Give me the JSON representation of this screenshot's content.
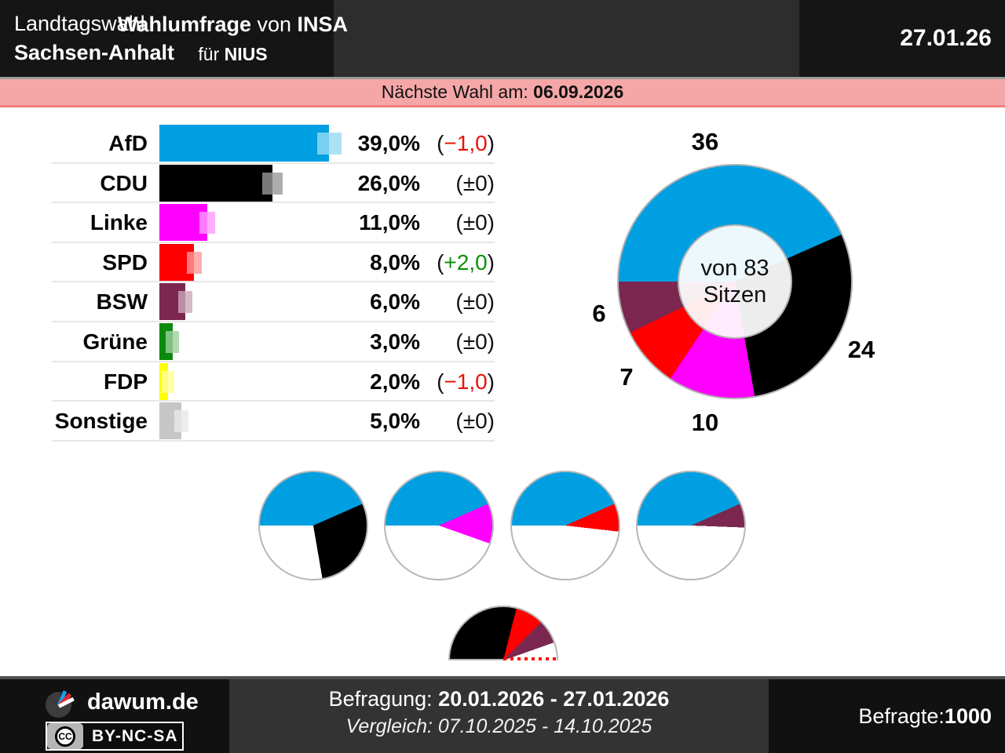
{
  "header": {
    "title_line1": "Landtagswahl",
    "title_line2": "Sachsen-Anhalt",
    "center_bold1": "Wahlumfrage",
    "center_sep": " von ",
    "center_bold2": "INSA",
    "center2_pre": "für ",
    "center2_bold": "NIUS",
    "date": "27.01.26"
  },
  "banner": {
    "prefix": "Nächste Wahl am: ",
    "date": "06.09.2026",
    "bg_color": "#f5a7a7"
  },
  "chart_data": [
    {
      "id": "poll-bars",
      "type": "bar",
      "unit": "%",
      "categories": [
        "AfD",
        "CDU",
        "Linke",
        "SPD",
        "BSW",
        "Grüne",
        "FDP",
        "Sonstige"
      ],
      "values": [
        39.0,
        26.0,
        11.0,
        8.0,
        6.0,
        3.0,
        2.0,
        5.0
      ],
      "value_labels": [
        "39,0%",
        "26,0%",
        "11,0%",
        "8,0%",
        "6,0%",
        "3,0%",
        "2,0%",
        "5,0%"
      ],
      "changes": [
        "−1,0",
        "±0",
        "±0",
        "+2,0",
        "±0",
        "±0",
        "−1,0",
        "±0"
      ],
      "change_trends": [
        "neg",
        "zero",
        "zero",
        "pos",
        "zero",
        "zero",
        "neg",
        "zero"
      ],
      "colors": [
        "#009fe1",
        "#000000",
        "#fe00fe",
        "#ff0000",
        "#7b2750",
        "#0b8a0e",
        "#ffff00",
        "#c6c6c6"
      ],
      "trend_colors": {
        "neg": "#e81309",
        "pos": "#0a9106",
        "zero": "#111111"
      },
      "xlim": [
        0,
        40.5
      ],
      "grid": false
    },
    {
      "id": "seats-donut",
      "type": "pie",
      "subtype": "donut",
      "center_line1": "von 83",
      "center_line2": "Sitzen",
      "total_seats": 83,
      "labels": [
        "AfD",
        "CDU",
        "Linke",
        "SPD",
        "BSW"
      ],
      "values": [
        36,
        24,
        10,
        7,
        6
      ],
      "colors": [
        "#009fe1",
        "#000000",
        "#fe00fe",
        "#ff0000",
        "#7b2750"
      ]
    },
    {
      "id": "coalition-pies",
      "type": "pie",
      "subtype": "majority-circles",
      "total_seats": 83,
      "pies": [
        {
          "name": "AfD+CDU",
          "segments": [
            {
              "party": "AfD",
              "seats": 36,
              "color": "#009fe1"
            },
            {
              "party": "CDU",
              "seats": 24,
              "color": "#000000"
            }
          ]
        },
        {
          "name": "AfD+Linke",
          "segments": [
            {
              "party": "AfD",
              "seats": 36,
              "color": "#009fe1"
            },
            {
              "party": "Linke",
              "seats": 10,
              "color": "#fe00fe"
            }
          ]
        },
        {
          "name": "AfD+SPD",
          "segments": [
            {
              "party": "AfD",
              "seats": 36,
              "color": "#009fe1"
            },
            {
              "party": "SPD",
              "seats": 7,
              "color": "#ff0000"
            }
          ]
        },
        {
          "name": "AfD+BSW",
          "segments": [
            {
              "party": "AfD",
              "seats": 36,
              "color": "#009fe1"
            },
            {
              "party": "BSW",
              "seats": 6,
              "color": "#7b2750"
            }
          ]
        }
      ]
    },
    {
      "id": "opposition-half-pie",
      "type": "pie",
      "subtype": "half",
      "total_seats": 83,
      "majority_line": true,
      "segments": [
        {
          "party": "CDU",
          "seats": 24,
          "color": "#000000"
        },
        {
          "party": "SPD",
          "seats": 7,
          "color": "#ff0000"
        },
        {
          "party": "BSW",
          "seats": 6,
          "color": "#7b2750"
        }
      ]
    }
  ],
  "footer": {
    "brand": "dawum.de",
    "cc": "CC",
    "license": "BY-NC-SA",
    "survey_label": "Befragung: ",
    "survey_value": "20.01.2026 - 27.01.2026",
    "comparison_line": "Vergleich: 07.10.2025 - 14.10.2025",
    "respondents_label": "Befragte: ",
    "respondents_value": "1000"
  }
}
